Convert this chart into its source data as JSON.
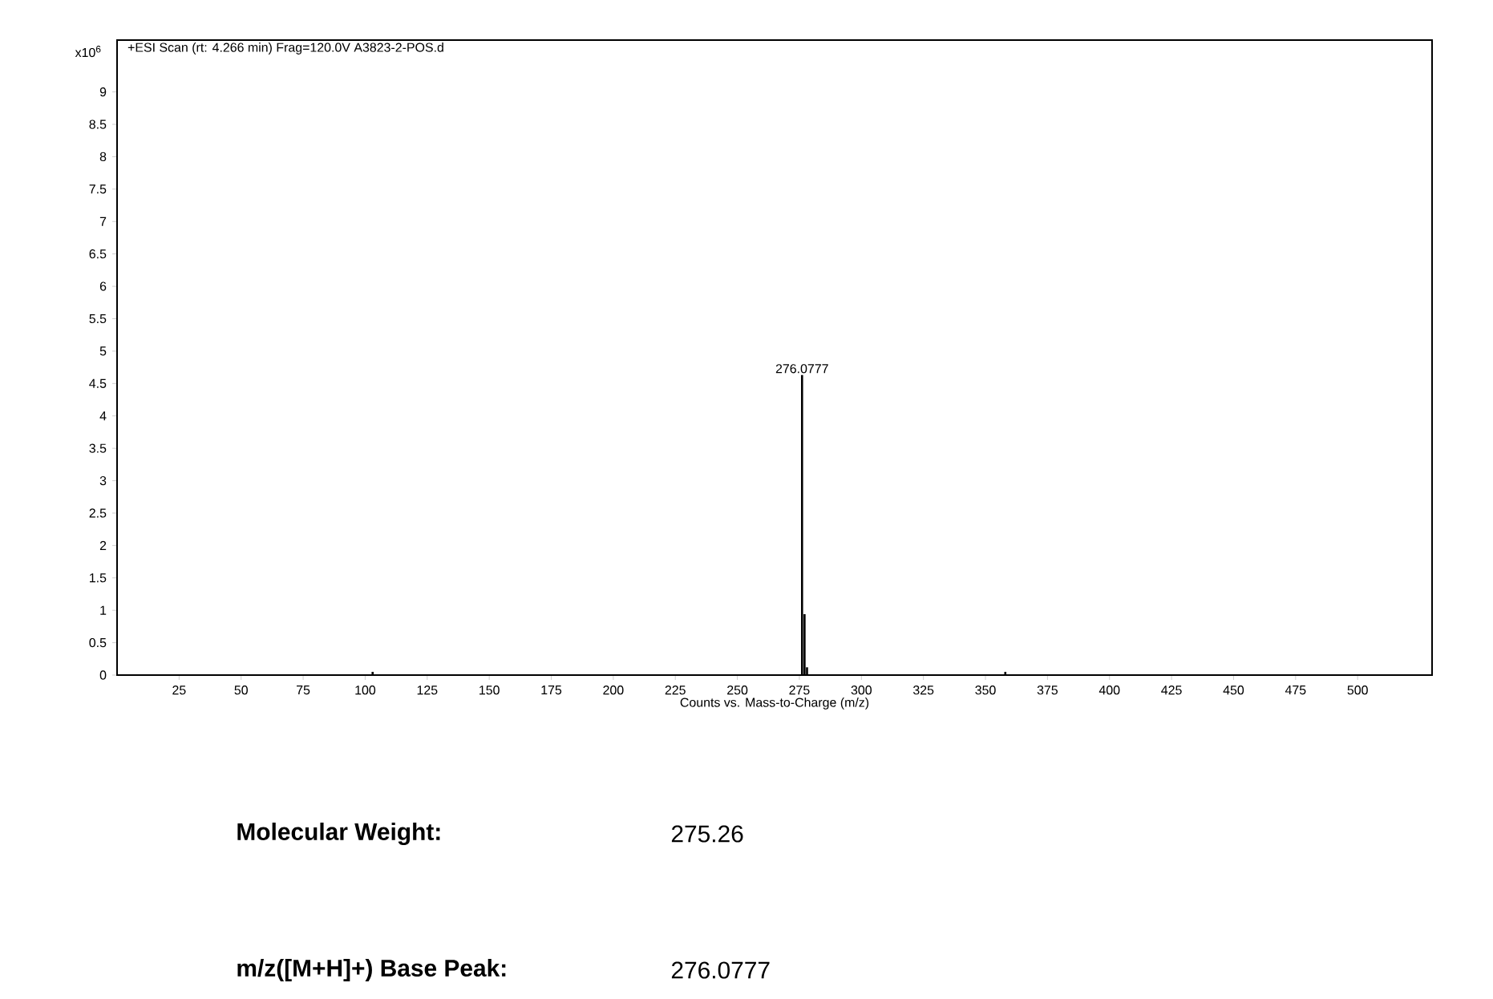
{
  "chart_data": {
    "type": "bar",
    "title": "+ESI Scan (rt: 4.266 min) Frag=120.0V A3823-2-POS.d",
    "xlabel": "Counts vs. Mass-to-Charge (m/z)",
    "ylabel": "x10$^{6}$",
    "x": [
      103,
      276.0777,
      277.08,
      278.08,
      358
    ],
    "values": [
      0.05,
      4.63,
      0.94,
      0.12,
      0.05
    ],
    "color": "#000000",
    "xlim": [
      0,
      530
    ],
    "ylim": [
      0,
      9.8
    ],
    "xticks": [
      25,
      50,
      75,
      100,
      125,
      150,
      175,
      200,
      225,
      250,
      275,
      300,
      325,
      350,
      375,
      400,
      425,
      450,
      475,
      500
    ],
    "yticks": [
      0,
      0.5,
      1,
      1.5,
      2,
      2.5,
      3,
      3.5,
      4,
      4.5,
      5,
      5.5,
      6,
      6.5,
      7,
      7.5,
      8,
      8.5,
      9
    ],
    "marker": "none",
    "annotations": [
      {
        "text": "276.0777",
        "x": 276.0777,
        "y": 4.63
      },
      "Molecular Weight:",
      "275.26",
      "m/z([M+H]+) Base Peak:",
      "276.0777"
    ]
  }
}
